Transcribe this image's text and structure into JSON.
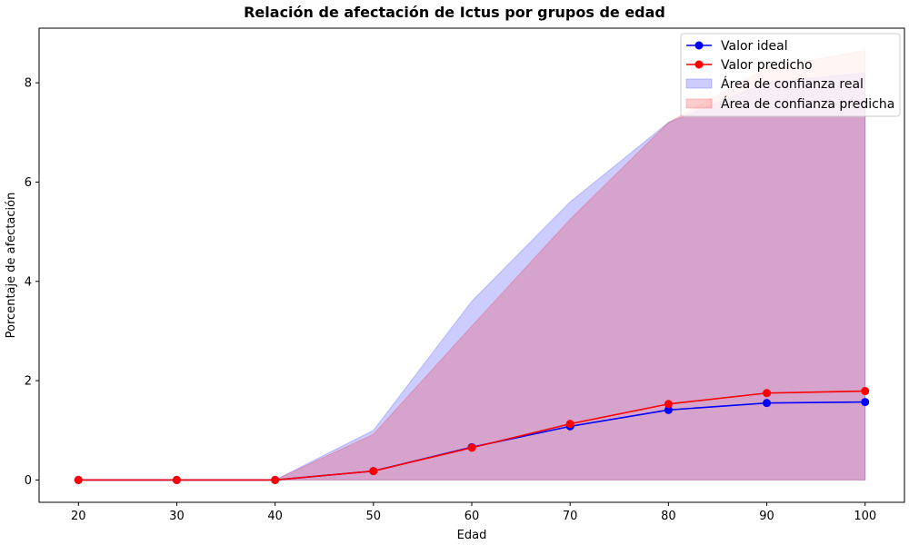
{
  "chart_data": {
    "type": "line",
    "title": "Relación de afectación de Ictus por grupos de edad",
    "xlabel": "Edad",
    "ylabel": "Porcentaje de afectación",
    "x": [
      20,
      30,
      40,
      50,
      60,
      70,
      80,
      90,
      100
    ],
    "xlim": [
      16,
      104
    ],
    "ylim": [
      -0.45,
      9.1
    ],
    "xticks": [
      "20",
      "30",
      "40",
      "50",
      "60",
      "70",
      "80",
      "90",
      "100"
    ],
    "yticks": [
      "0",
      "2",
      "4",
      "6",
      "8"
    ],
    "grid": false,
    "legend_position": "top-right",
    "series": [
      {
        "name": "Valor ideal",
        "color": "#0000ff",
        "values": [
          0,
          0,
          0,
          0.18,
          0.66,
          1.08,
          1.41,
          1.55,
          1.57
        ]
      },
      {
        "name": "Valor predicho",
        "color": "#ff0000",
        "values": [
          0,
          0,
          0,
          0.18,
          0.65,
          1.13,
          1.53,
          1.75,
          1.79
        ]
      }
    ],
    "bands": [
      {
        "name": "Área de confianza real",
        "color": "#0000ff",
        "lower": [
          0,
          0,
          0,
          0,
          0,
          0,
          0,
          0,
          0
        ],
        "upper": [
          0,
          0,
          0,
          1.0,
          3.6,
          5.6,
          7.2,
          8.0,
          8.2
        ]
      },
      {
        "name": "Área de confianza predicha",
        "color": "#ff0000",
        "lower": [
          0,
          0,
          0,
          0,
          0,
          0,
          0,
          0,
          0
        ],
        "upper": [
          0,
          0,
          0,
          0.92,
          3.1,
          5.25,
          7.2,
          8.3,
          8.65
        ]
      }
    ]
  }
}
